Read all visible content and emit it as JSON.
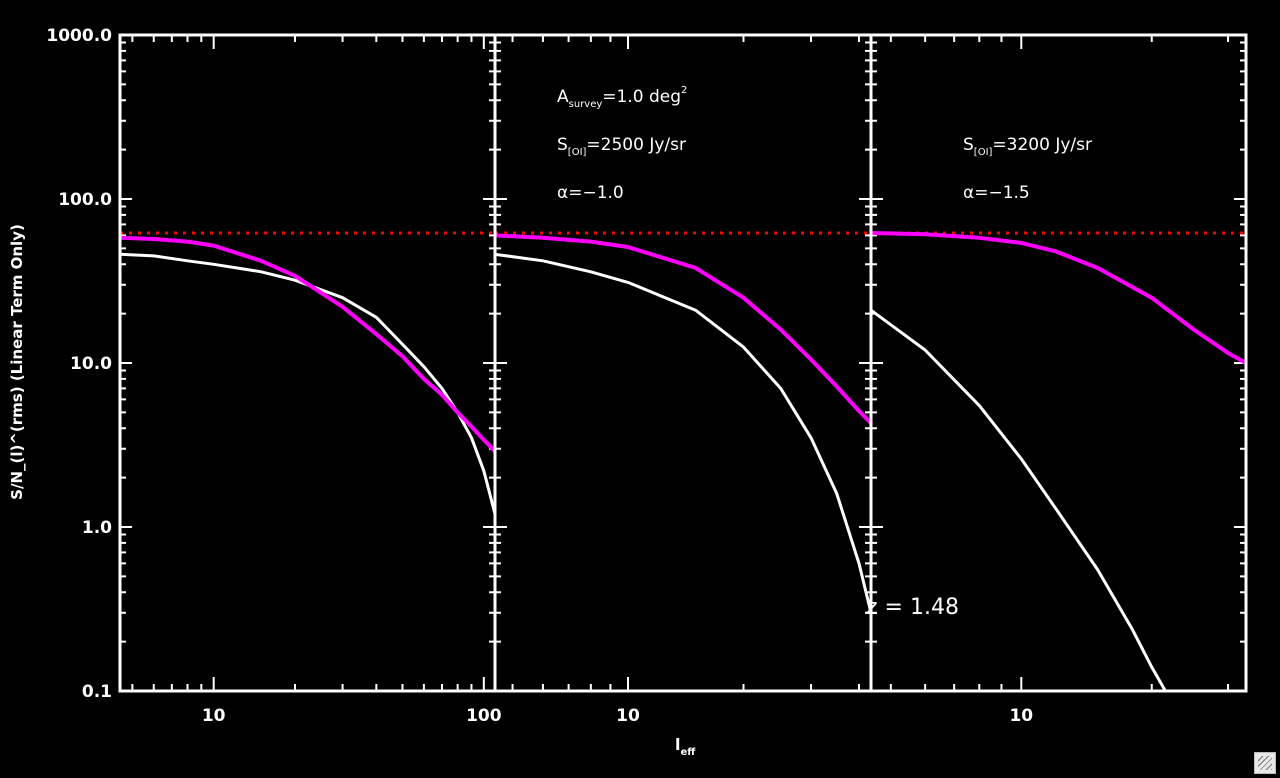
{
  "chart_data": [
    {
      "type": "line",
      "panel": "left",
      "xscale": "log",
      "yscale": "log",
      "xlim": [
        4.5,
        110
      ],
      "ylim": [
        0.1,
        1000
      ],
      "x_tick_labels": [
        "10",
        "100"
      ],
      "y_tick_labels": [
        "0.1",
        "1.0",
        "10.0",
        "100.0",
        "1000.0"
      ],
      "ylabel": "S/N_(l)^(rms) (Linear Term Only)",
      "reference_line": {
        "y": 62,
        "color": "#ff0000",
        "style": "dotted"
      },
      "series": [
        {
          "color": "#ffffff",
          "x": [
            4.5,
            6,
            8,
            10,
            15,
            20,
            30,
            40,
            50,
            60,
            70,
            80,
            90,
            100,
            110
          ],
          "y": [
            46,
            45,
            42,
            40,
            36,
            32,
            25,
            19,
            13,
            9.5,
            7,
            5,
            3.5,
            2.2,
            1.2
          ]
        },
        {
          "color": "#ff00ff",
          "x": [
            4.5,
            6,
            8,
            10,
            15,
            20,
            30,
            40,
            50,
            60,
            70,
            80,
            90,
            100,
            110
          ],
          "y": [
            58,
            57,
            55,
            52,
            42,
            34,
            22,
            15,
            11,
            8,
            6.4,
            5,
            4.1,
            3.4,
            2.9
          ]
        }
      ]
    },
    {
      "type": "line",
      "panel": "middle",
      "xscale": "log",
      "yscale": "log",
      "xlim": [
        4.5,
        43
      ],
      "ylim": [
        0.1,
        1000
      ],
      "x_tick_labels": [
        "10"
      ],
      "reference_line": {
        "y": 62,
        "color": "#ff0000",
        "style": "dotted"
      },
      "annotations": [
        "A",
        "survey",
        "=1.0 deg",
        "2",
        "S",
        "[OI]",
        "=2500 Jy/sr",
        "α=−1.0",
        "z = 1.48"
      ],
      "series": [
        {
          "color": "#ffffff",
          "x": [
            4.5,
            6,
            8,
            10,
            15,
            20,
            25,
            30,
            35,
            40,
            43
          ],
          "y": [
            46,
            42,
            36,
            31,
            21,
            12.5,
            7,
            3.5,
            1.6,
            0.6,
            0.3
          ]
        },
        {
          "color": "#ff00ff",
          "x": [
            4.5,
            6,
            8,
            10,
            15,
            20,
            25,
            30,
            35,
            40,
            43
          ],
          "y": [
            60,
            58,
            55,
            51,
            38,
            25,
            16,
            10.5,
            7.2,
            5.1,
            4.3
          ]
        }
      ]
    },
    {
      "type": "line",
      "panel": "right",
      "xscale": "log",
      "yscale": "log",
      "xlim": [
        4.5,
        33
      ],
      "ylim": [
        0.1,
        1000
      ],
      "x_tick_labels": [
        "10"
      ],
      "reference_line": {
        "y": 62,
        "color": "#ff0000",
        "style": "dotted"
      },
      "annotations": [
        "S",
        "[OI]",
        "=3200 Jy/sr",
        "α=−1.5"
      ],
      "series": [
        {
          "color": "#ffffff",
          "x": [
            4.5,
            6,
            8,
            10,
            12,
            15,
            18,
            20,
            22,
            24
          ],
          "y": [
            21,
            12,
            5.5,
            2.6,
            1.3,
            0.55,
            0.24,
            0.14,
            0.09,
            0.06
          ]
        },
        {
          "color": "#ff00ff",
          "x": [
            4.5,
            6,
            8,
            10,
            12,
            15,
            20,
            25,
            30,
            33
          ],
          "y": [
            62,
            61,
            58,
            54,
            48,
            38,
            25,
            16,
            11.5,
            10
          ]
        }
      ]
    }
  ],
  "xlabel": "l",
  "xlabel_sub": "eff"
}
